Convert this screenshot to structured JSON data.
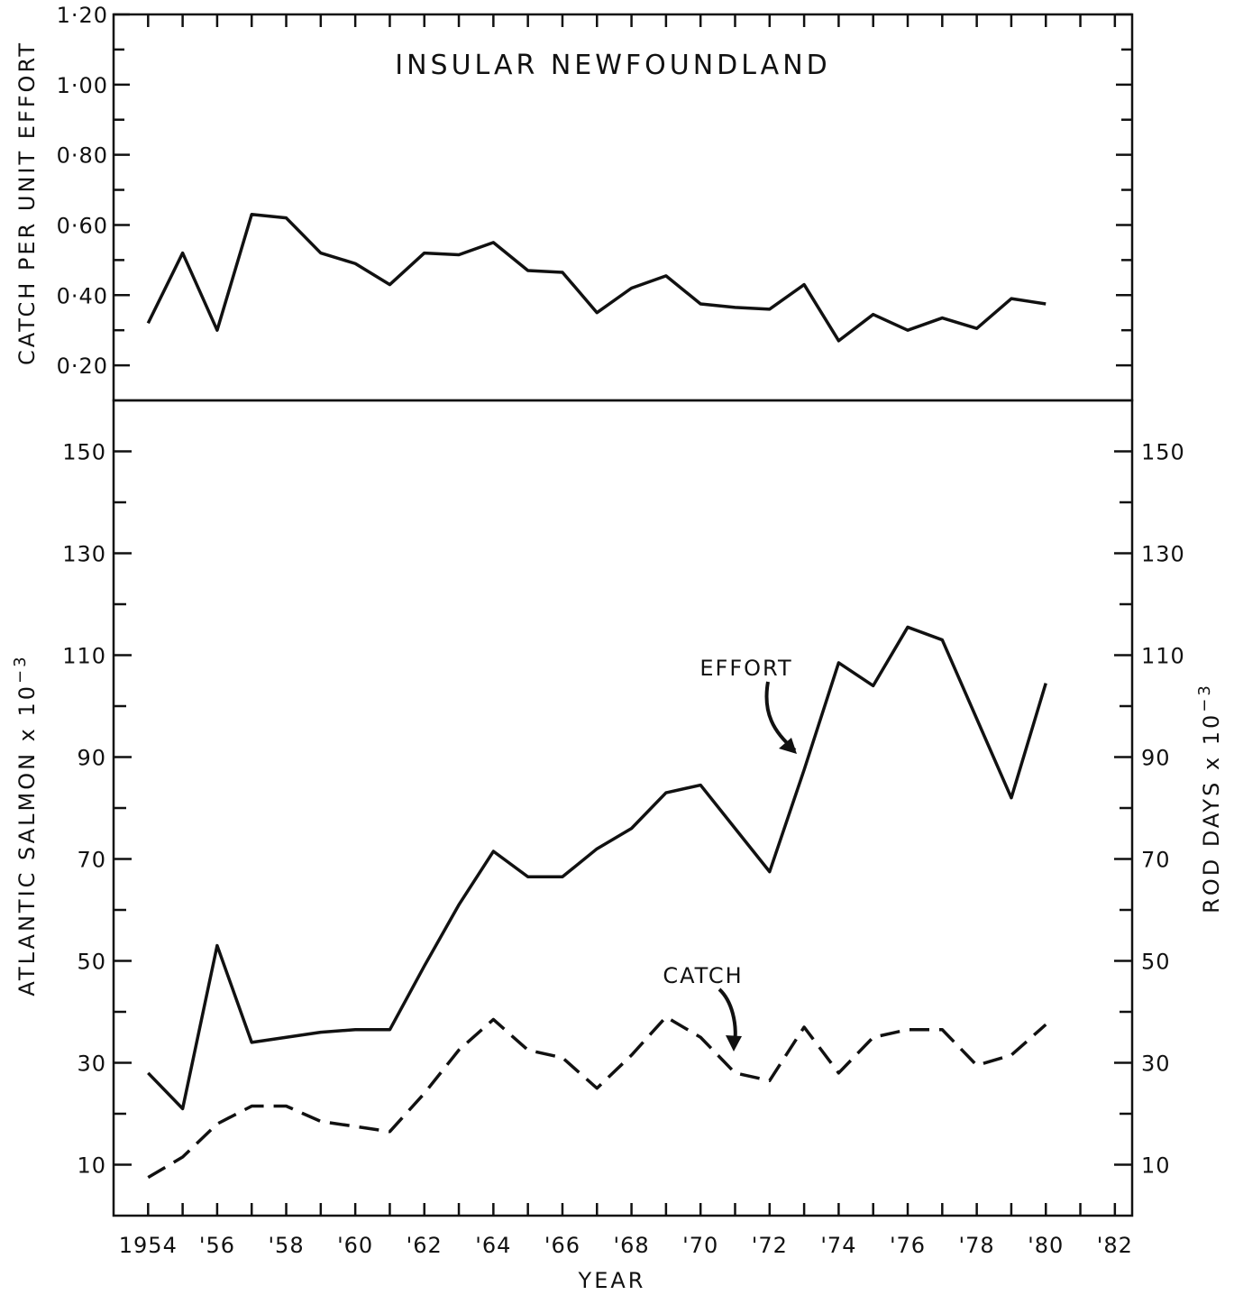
{
  "chart_data": [
    {
      "type": "line",
      "title": "INSULAR NEWFOUNDLAND",
      "ylabel": "CATCH PER UNIT EFFORT",
      "ylim": [
        0.1,
        1.2
      ],
      "yticks": [
        0.2,
        0.4,
        0.6,
        0.8,
        1.0,
        1.2
      ],
      "ytick_labels": [
        "0·20",
        "0·40",
        "0·60",
        "0·80",
        "1·00",
        "1·20"
      ],
      "x": [
        1954,
        1955,
        1956,
        1957,
        1958,
        1959,
        1960,
        1961,
        1962,
        1963,
        1964,
        1965,
        1966,
        1967,
        1968,
        1969,
        1970,
        1971,
        1972,
        1973,
        1974,
        1975,
        1976,
        1977,
        1978,
        1979,
        1980
      ],
      "series": [
        {
          "values": [
            0.32,
            0.52,
            0.3,
            0.63,
            0.62,
            0.52,
            0.49,
            0.43,
            0.52,
            0.515,
            0.55,
            0.47,
            0.465,
            0.35,
            0.42,
            0.455,
            0.375,
            0.365,
            0.36,
            0.43,
            0.27,
            0.345,
            0.3,
            0.335,
            0.305,
            0.39,
            0.375
          ]
        }
      ]
    },
    {
      "type": "line",
      "xlabel": "YEAR",
      "ylabel_left": "ATLANTIC SALMON x 10",
      "ylabel_right": "ROD DAYS x 10",
      "ylabel_exponent": "−3",
      "ylim": [
        0,
        160
      ],
      "yticks": [
        10,
        30,
        50,
        70,
        90,
        110,
        130,
        150
      ],
      "ytick_labels": [
        "10",
        "30",
        "50",
        "70",
        "90",
        "110",
        "130",
        "150"
      ],
      "xticks": [
        1954,
        1956,
        1958,
        1960,
        1962,
        1964,
        1966,
        1968,
        1970,
        1972,
        1974,
        1976,
        1978,
        1980,
        1982
      ],
      "xtick_labels": [
        "1954",
        "'56",
        "'58",
        "'60",
        "'62",
        "'64",
        "'66",
        "'68",
        "'70",
        "'72",
        "'74",
        "'76",
        "'78",
        "'80",
        "'82"
      ],
      "xlim": [
        1953,
        1982.5
      ],
      "x": [
        1954,
        1955,
        1956,
        1957,
        1958,
        1959,
        1960,
        1961,
        1962,
        1963,
        1964,
        1965,
        1966,
        1967,
        1968,
        1969,
        1970,
        1971,
        1972,
        1973,
        1974,
        1975,
        1976,
        1977,
        1978,
        1979,
        1980
      ],
      "series": [
        {
          "name": "EFFORT",
          "style": "solid",
          "values": [
            28,
            21,
            53,
            34,
            35,
            36,
            36.5,
            36.5,
            49,
            61,
            71.5,
            66.5,
            66.5,
            72,
            76,
            83,
            84.5,
            76,
            67.5,
            87.5,
            108.5,
            104,
            115.5,
            113,
            97.5,
            82,
            104.5
          ]
        },
        {
          "name": "CATCH",
          "style": "dashed",
          "values": [
            7.5,
            11.5,
            18,
            21.5,
            21.5,
            18.5,
            17.5,
            16.5,
            24,
            32.5,
            38.5,
            32.5,
            31,
            25,
            31.5,
            39,
            35,
            28,
            26.5,
            37,
            28,
            35,
            36.5,
            36.5,
            29.5,
            31.5,
            37.5
          ]
        }
      ],
      "annotations": [
        "EFFORT",
        "CATCH"
      ]
    }
  ]
}
